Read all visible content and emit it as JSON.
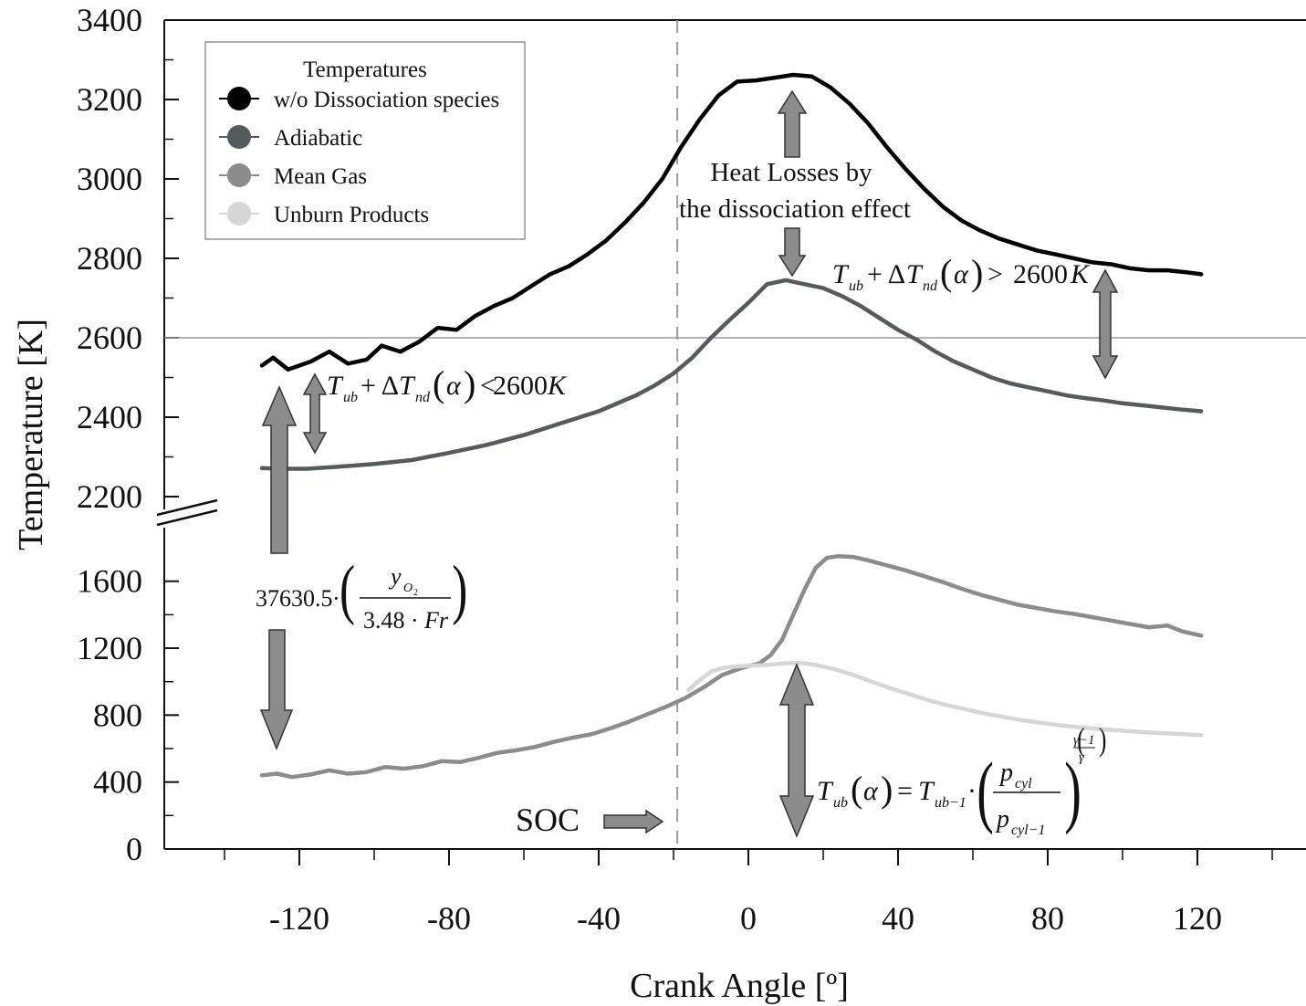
{
  "chart_data": {
    "type": "line",
    "xlabel": "Crank Angle [º]",
    "ylabel": "Temperature [K]",
    "xlim": [
      -150,
      150
    ],
    "ylim": [
      0,
      3400
    ],
    "axis_break": "between 200 and 2200 (upper segment 2200–3400, lower segment 0–1800)",
    "x_ticks": [
      "-120",
      "-80",
      "-40",
      "0",
      "40",
      "80",
      "120"
    ],
    "y_ticks": [
      "0",
      "400",
      "800",
      "1200",
      "1600",
      "2200",
      "2400",
      "2600",
      "2800",
      "3000",
      "3200",
      "3400"
    ],
    "reference_line_y": 2600,
    "reference_line_x": -19,
    "legend": {
      "title": "Temperatures",
      "position": "top-left",
      "entries": [
        {
          "label": "w/o Dissociation species",
          "color": "#000000"
        },
        {
          "label": "Adiabatic",
          "color": "#555a5c"
        },
        {
          "label": "Mean Gas",
          "color": "#8c8c8c"
        },
        {
          "label": "Unburn Products",
          "color": "#d6d6d6"
        }
      ]
    },
    "series": [
      {
        "name": "w/o Dissociation species",
        "color": "#000000",
        "points": [
          [
            -130,
            2530
          ],
          [
            -127,
            2550
          ],
          [
            -123,
            2520
          ],
          [
            -117,
            2540
          ],
          [
            -112,
            2565
          ],
          [
            -107,
            2535
          ],
          [
            -102,
            2545
          ],
          [
            -98,
            2580
          ],
          [
            -93,
            2565
          ],
          [
            -88,
            2590
          ],
          [
            -83,
            2625
          ],
          [
            -78,
            2620
          ],
          [
            -73,
            2655
          ],
          [
            -68,
            2680
          ],
          [
            -63,
            2700
          ],
          [
            -58,
            2730
          ],
          [
            -53,
            2760
          ],
          [
            -48,
            2780
          ],
          [
            -43,
            2810
          ],
          [
            -38,
            2845
          ],
          [
            -33,
            2890
          ],
          [
            -28,
            2940
          ],
          [
            -23,
            3000
          ],
          [
            -18,
            3080
          ],
          [
            -13,
            3150
          ],
          [
            -8,
            3210
          ],
          [
            -3,
            3245
          ],
          [
            2,
            3248
          ],
          [
            7,
            3255
          ],
          [
            12,
            3262
          ],
          [
            17,
            3258
          ],
          [
            22,
            3230
          ],
          [
            27,
            3190
          ],
          [
            32,
            3140
          ],
          [
            37,
            3080
          ],
          [
            42,
            3025
          ],
          [
            47,
            2975
          ],
          [
            52,
            2930
          ],
          [
            57,
            2895
          ],
          [
            62,
            2870
          ],
          [
            67,
            2850
          ],
          [
            72,
            2835
          ],
          [
            77,
            2820
          ],
          [
            82,
            2810
          ],
          [
            87,
            2800
          ],
          [
            92,
            2790
          ],
          [
            97,
            2785
          ],
          [
            102,
            2775
          ],
          [
            107,
            2770
          ],
          [
            112,
            2770
          ],
          [
            117,
            2765
          ],
          [
            121,
            2760
          ]
        ]
      },
      {
        "name": "Adiabatic",
        "color": "#555a5c",
        "points": [
          [
            -130,
            2272
          ],
          [
            -125,
            2270
          ],
          [
            -118,
            2270
          ],
          [
            -110,
            2275
          ],
          [
            -100,
            2282
          ],
          [
            -90,
            2292
          ],
          [
            -80,
            2310
          ],
          [
            -70,
            2330
          ],
          [
            -60,
            2355
          ],
          [
            -50,
            2385
          ],
          [
            -40,
            2415
          ],
          [
            -30,
            2455
          ],
          [
            -25,
            2480
          ],
          [
            -20,
            2510
          ],
          [
            -15,
            2550
          ],
          [
            -10,
            2600
          ],
          [
            -5,
            2645
          ],
          [
            0,
            2688
          ],
          [
            5,
            2735
          ],
          [
            10,
            2745
          ],
          [
            15,
            2735
          ],
          [
            20,
            2725
          ],
          [
            25,
            2705
          ],
          [
            30,
            2680
          ],
          [
            35,
            2650
          ],
          [
            40,
            2620
          ],
          [
            45,
            2595
          ],
          [
            50,
            2565
          ],
          [
            55,
            2540
          ],
          [
            60,
            2520
          ],
          [
            65,
            2500
          ],
          [
            70,
            2485
          ],
          [
            75,
            2475
          ],
          [
            80,
            2465
          ],
          [
            85,
            2455
          ],
          [
            90,
            2448
          ],
          [
            95,
            2442
          ],
          [
            100,
            2435
          ],
          [
            105,
            2430
          ],
          [
            110,
            2425
          ],
          [
            115,
            2420
          ],
          [
            121,
            2415
          ]
        ]
      },
      {
        "name": "Mean Gas",
        "color": "#8c8c8c",
        "points": [
          [
            -130,
            440
          ],
          [
            -126,
            450
          ],
          [
            -122,
            430
          ],
          [
            -117,
            445
          ],
          [
            -112,
            470
          ],
          [
            -107,
            450
          ],
          [
            -102,
            460
          ],
          [
            -97,
            490
          ],
          [
            -92,
            480
          ],
          [
            -87,
            495
          ],
          [
            -82,
            525
          ],
          [
            -77,
            520
          ],
          [
            -72,
            545
          ],
          [
            -67,
            575
          ],
          [
            -62,
            590
          ],
          [
            -57,
            610
          ],
          [
            -52,
            640
          ],
          [
            -47,
            665
          ],
          [
            -42,
            685
          ],
          [
            -37,
            720
          ],
          [
            -32,
            760
          ],
          [
            -27,
            805
          ],
          [
            -22,
            850
          ],
          [
            -17,
            900
          ],
          [
            -12,
            965
          ],
          [
            -7,
            1040
          ],
          [
            -2,
            1080
          ],
          [
            3,
            1110
          ],
          [
            6,
            1160
          ],
          [
            9,
            1250
          ],
          [
            12,
            1400
          ],
          [
            15,
            1550
          ],
          [
            18,
            1680
          ],
          [
            21,
            1740
          ],
          [
            24,
            1750
          ],
          [
            28,
            1745
          ],
          [
            32,
            1725
          ],
          [
            37,
            1695
          ],
          [
            42,
            1665
          ],
          [
            47,
            1630
          ],
          [
            52,
            1595
          ],
          [
            57,
            1555
          ],
          [
            62,
            1520
          ],
          [
            67,
            1490
          ],
          [
            72,
            1460
          ],
          [
            77,
            1440
          ],
          [
            82,
            1420
          ],
          [
            87,
            1405
          ],
          [
            92,
            1385
          ],
          [
            97,
            1365
          ],
          [
            102,
            1345
          ],
          [
            107,
            1325
          ],
          [
            112,
            1335
          ],
          [
            116,
            1300
          ],
          [
            121,
            1275
          ]
        ]
      },
      {
        "name": "Unburn Products",
        "color": "#d6d6d6",
        "points": [
          [
            -16,
            950
          ],
          [
            -13,
            1010
          ],
          [
            -10,
            1060
          ],
          [
            -7,
            1080
          ],
          [
            -4,
            1090
          ],
          [
            0,
            1095
          ],
          [
            5,
            1100
          ],
          [
            10,
            1110
          ],
          [
            14,
            1112
          ],
          [
            18,
            1100
          ],
          [
            23,
            1075
          ],
          [
            28,
            1040
          ],
          [
            33,
            1000
          ],
          [
            38,
            960
          ],
          [
            43,
            925
          ],
          [
            48,
            890
          ],
          [
            53,
            860
          ],
          [
            58,
            835
          ],
          [
            63,
            810
          ],
          [
            68,
            790
          ],
          [
            73,
            770
          ],
          [
            78,
            755
          ],
          [
            83,
            740
          ],
          [
            88,
            728
          ],
          [
            93,
            718
          ],
          [
            98,
            710
          ],
          [
            103,
            702
          ],
          [
            108,
            695
          ],
          [
            113,
            690
          ],
          [
            117,
            685
          ],
          [
            121,
            680
          ]
        ]
      }
    ],
    "annotations": [
      {
        "id": "heat-losses",
        "text_line1": "Heat Losses by",
        "text_line2": "the dissociation effect"
      },
      {
        "id": "soc",
        "text": "SOC"
      },
      {
        "id": "formula-greater",
        "text": "Tub + ΔTnd(α) > 2600K"
      },
      {
        "id": "formula-less",
        "text": "Tub + ΔTnd(α) < 2600K"
      },
      {
        "id": "formula-oxygen",
        "text": "37630.5·(yO2 / (3.48·Fr))"
      },
      {
        "id": "formula-unburn",
        "text": "Tub(α) = Tub−1·(pcyl / pcyl−1)^((γ−1)/γ)"
      }
    ]
  },
  "ann": {
    "heat1": "Heat Losses by",
    "heat2": "the dissociation effect",
    "soc": "SOC",
    "num": "37630.5",
    "k2600": "2600",
    "K": "K"
  }
}
